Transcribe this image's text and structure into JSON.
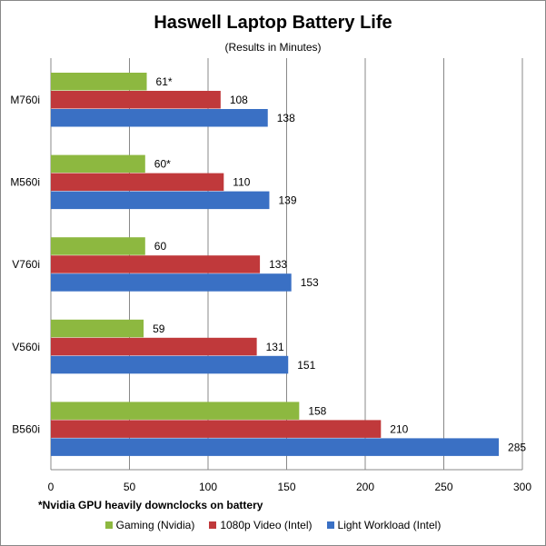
{
  "chart_data": {
    "type": "bar",
    "orientation": "horizontal",
    "title": "Haswell Laptop Battery Life",
    "subtitle": "(Results in Minutes)",
    "categories": [
      "M760i",
      "M560i",
      "V760i",
      "V560i",
      "B560i"
    ],
    "series": [
      {
        "name": "Gaming (Nvidia)",
        "color": "#8db840",
        "values": [
          61,
          60,
          60,
          59,
          158
        ],
        "labels": [
          "61*",
          "60*",
          "60",
          "59",
          "158"
        ]
      },
      {
        "name": "1080p Video (Intel)",
        "color": "#c0393b",
        "values": [
          108,
          110,
          133,
          131,
          210
        ],
        "labels": [
          "108",
          "110",
          "133",
          "131",
          "210"
        ]
      },
      {
        "name": "Light Workload (Intel)",
        "color": "#3a70c4",
        "values": [
          138,
          139,
          153,
          151,
          285
        ],
        "labels": [
          "138",
          "139",
          "153",
          "151",
          "285"
        ]
      }
    ],
    "xlim": [
      0,
      300
    ],
    "xticks": [
      "0",
      "50",
      "100",
      "150",
      "200",
      "250",
      "300"
    ],
    "grid": true,
    "legend": "bottom",
    "footnote": "*Nvidia GPU heavily downclocks on battery"
  }
}
